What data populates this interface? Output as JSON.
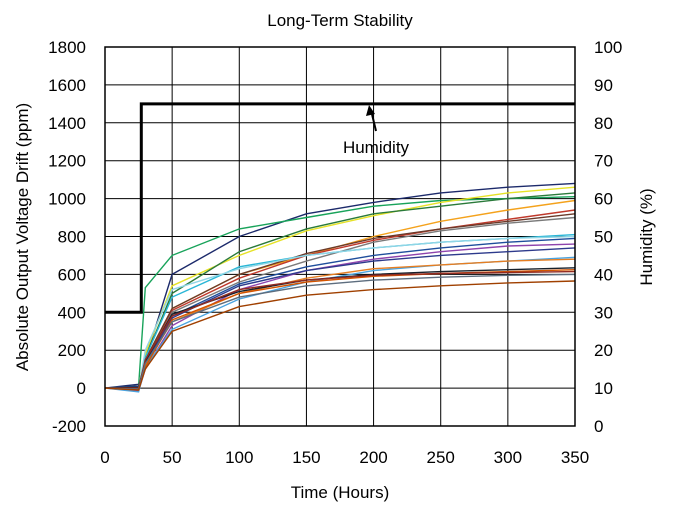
{
  "chart_data": {
    "type": "line",
    "title": "Long-Term Stability",
    "xlabel": "Time (Hours)",
    "ylabel": "Absolute Output Voltage Drift (ppm)",
    "y2label": "Humidity (%)",
    "xlim": [
      0,
      350
    ],
    "ylim": [
      -200,
      1800
    ],
    "y2lim": [
      0,
      100
    ],
    "grid": true,
    "x_ticks": [
      "0",
      "50",
      "100",
      "150",
      "200",
      "250",
      "300",
      "350"
    ],
    "y_ticks": [
      "-200",
      "0",
      "200",
      "400",
      "600",
      "800",
      "1000",
      "1200",
      "1400",
      "1600",
      "1800"
    ],
    "y2_ticks": [
      "0",
      "10",
      "20",
      "30",
      "40",
      "50",
      "60",
      "70",
      "80",
      "90",
      "100"
    ],
    "annotation": {
      "text": "Humidity",
      "points_to": {
        "x": 205,
        "y2": 85
      }
    },
    "humidity": {
      "x": [
        0,
        27,
        27,
        350
      ],
      "y2": [
        30,
        30,
        85,
        85
      ],
      "color": "#000000"
    },
    "drift_series": [
      {
        "color": "#1c2a6b",
        "x": [
          0,
          25,
          30,
          50,
          100,
          150,
          200,
          250,
          300,
          350
        ],
        "values": [
          0,
          20,
          150,
          600,
          800,
          920,
          980,
          1030,
          1060,
          1080
        ]
      },
      {
        "color": "#18a35a",
        "x": [
          0,
          25,
          30,
          50,
          100,
          150,
          200,
          250,
          300,
          350
        ],
        "values": [
          0,
          10,
          530,
          700,
          840,
          900,
          960,
          990,
          1000,
          1010
        ]
      },
      {
        "color": "#e6e227",
        "x": [
          0,
          25,
          30,
          50,
          100,
          150,
          200,
          250,
          300,
          350
        ],
        "values": [
          0,
          5,
          180,
          540,
          700,
          830,
          910,
          980,
          1030,
          1060
        ]
      },
      {
        "color": "#2a7a3a",
        "x": [
          0,
          25,
          30,
          50,
          100,
          150,
          200,
          250,
          300,
          350
        ],
        "values": [
          0,
          0,
          160,
          500,
          720,
          840,
          920,
          960,
          1000,
          1030
        ]
      },
      {
        "color": "#f4a21c",
        "x": [
          0,
          25,
          30,
          50,
          100,
          150,
          200,
          250,
          300,
          350
        ],
        "values": [
          0,
          -10,
          140,
          420,
          600,
          700,
          800,
          880,
          940,
          990
        ]
      },
      {
        "color": "#c0392b",
        "x": [
          0,
          25,
          30,
          50,
          100,
          150,
          200,
          250,
          300,
          350
        ],
        "values": [
          0,
          0,
          130,
          410,
          580,
          700,
          780,
          840,
          890,
          940
        ]
      },
      {
        "color": "#6b3a2a",
        "x": [
          0,
          25,
          30,
          50,
          100,
          150,
          200,
          250,
          300,
          350
        ],
        "values": [
          0,
          10,
          150,
          420,
          600,
          710,
          790,
          840,
          880,
          920
        ]
      },
      {
        "color": "#7a7a7a",
        "x": [
          0,
          25,
          30,
          50,
          100,
          150,
          200,
          250,
          300,
          350
        ],
        "values": [
          0,
          -5,
          120,
          400,
          560,
          670,
          770,
          830,
          870,
          900
        ]
      },
      {
        "color": "#29b6d6",
        "x": [
          0,
          25,
          30,
          50,
          100,
          150,
          200,
          250,
          300,
          350
        ],
        "values": [
          0,
          0,
          160,
          480,
          640,
          700,
          740,
          770,
          790,
          810
        ]
      },
      {
        "color": "#8fd6e6",
        "x": [
          0,
          25,
          30,
          50,
          100,
          150,
          200,
          250,
          300,
          350
        ],
        "values": [
          0,
          -5,
          200,
          520,
          630,
          700,
          740,
          770,
          790,
          800
        ]
      },
      {
        "color": "#1f4e9c",
        "x": [
          0,
          25,
          30,
          50,
          100,
          150,
          200,
          250,
          300,
          350
        ],
        "values": [
          0,
          10,
          120,
          380,
          550,
          640,
          700,
          740,
          770,
          790
        ]
      },
      {
        "color": "#8e44ad",
        "x": [
          0,
          25,
          30,
          50,
          100,
          150,
          200,
          250,
          300,
          350
        ],
        "values": [
          0,
          -15,
          100,
          330,
          520,
          620,
          680,
          720,
          750,
          760
        ]
      },
      {
        "color": "#2d3a8c",
        "x": [
          0,
          25,
          30,
          50,
          100,
          150,
          200,
          250,
          300,
          350
        ],
        "values": [
          0,
          5,
          130,
          370,
          540,
          620,
          670,
          700,
          720,
          740
        ]
      },
      {
        "color": "#4aa3df",
        "x": [
          0,
          25,
          30,
          50,
          100,
          150,
          200,
          250,
          300,
          350
        ],
        "values": [
          0,
          -20,
          110,
          310,
          470,
          560,
          620,
          650,
          670,
          690
        ]
      },
      {
        "color": "#e67e22",
        "x": [
          0,
          25,
          30,
          50,
          100,
          150,
          200,
          250,
          300,
          350
        ],
        "values": [
          0,
          0,
          120,
          350,
          500,
          580,
          630,
          650,
          670,
          680
        ]
      },
      {
        "color": "#17202a",
        "x": [
          0,
          25,
          30,
          50,
          100,
          150,
          200,
          250,
          300,
          350
        ],
        "values": [
          0,
          5,
          140,
          390,
          510,
          570,
          600,
          615,
          625,
          635
        ]
      },
      {
        "color": "#d35400",
        "x": [
          0,
          25,
          30,
          50,
          100,
          150,
          200,
          250,
          300,
          350
        ],
        "values": [
          0,
          -10,
          110,
          360,
          500,
          560,
          590,
          605,
          615,
          625
        ]
      },
      {
        "color": "#922b21",
        "x": [
          0,
          25,
          30,
          50,
          100,
          150,
          200,
          250,
          300,
          350
        ],
        "values": [
          0,
          0,
          150,
          380,
          520,
          570,
          595,
          605,
          610,
          615
        ]
      },
      {
        "color": "#5d6d7e",
        "x": [
          0,
          25,
          30,
          50,
          100,
          150,
          200,
          250,
          300,
          350
        ],
        "values": [
          0,
          -5,
          130,
          350,
          480,
          540,
          570,
          585,
          595,
          600
        ]
      },
      {
        "color": "#a04000",
        "x": [
          0,
          25,
          30,
          50,
          100,
          150,
          200,
          250,
          300,
          350
        ],
        "values": [
          0,
          -10,
          100,
          300,
          430,
          490,
          520,
          540,
          555,
          565
        ]
      }
    ]
  }
}
